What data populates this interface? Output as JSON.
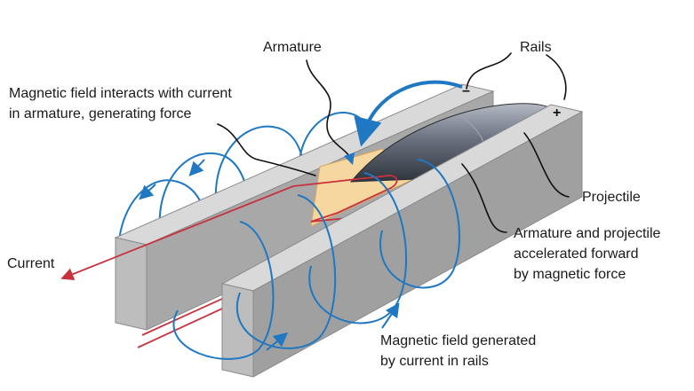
{
  "labels": {
    "armature": "Armature",
    "rails": "Rails",
    "field_interacts_line1": "Magnetic field interacts with current",
    "field_interacts_line2": "in armature, generating force",
    "projectile": "Projectile",
    "accelerated_line1": "Armature and projectile",
    "accelerated_line2": "accelerated forward",
    "accelerated_line3": "by magnetic force",
    "current": "Current",
    "field_generated_line1": "Magnetic field generated",
    "field_generated_line2": "by current in rails",
    "minus_sign": "–",
    "plus_sign": "+"
  },
  "colors": {
    "field_lines": "#1f78c1",
    "current": "#c8323c",
    "armature": "#f7d7a0",
    "projectile": "#5c6470",
    "rail_top": "#d9d9d9",
    "rail_front": "#bdbdbd",
    "rail_side": "#9e9e9e"
  }
}
